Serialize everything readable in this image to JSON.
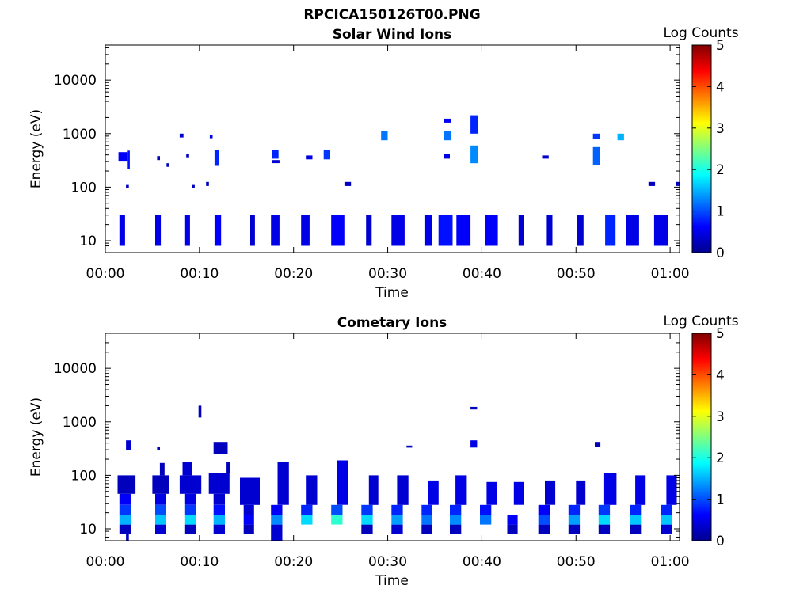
{
  "figure": {
    "title": "RPCICA150126T00.PNG"
  },
  "chart_data": [
    {
      "type": "heatmap",
      "title": "Solar Wind Ions",
      "xlabel": "Time",
      "ylabel": "Energy (eV)",
      "x_range_minutes": [
        0,
        61
      ],
      "x_ticks": [
        "00:00",
        "00:10",
        "00:20",
        "00:30",
        "00:40",
        "00:50",
        "01:00"
      ],
      "x_tick_minutes": [
        0,
        10,
        20,
        30,
        40,
        50,
        60
      ],
      "y_scale": "log",
      "y_range": [
        6,
        45000
      ],
      "y_ticks": [
        "10",
        "100",
        "1000",
        "10000"
      ],
      "y_tick_values": [
        10,
        100,
        1000,
        10000
      ],
      "colorbar": {
        "label": "Log Counts",
        "range": [
          0,
          5
        ],
        "ticks": [
          "0",
          "1",
          "2",
          "3",
          "4",
          "5"
        ],
        "colormap": "jet"
      },
      "cells": [
        [
          1.5,
          2.1,
          8.0,
          30.0,
          0.5
        ],
        [
          5.3,
          5.9,
          8.0,
          30.0,
          0.5
        ],
        [
          8.4,
          9.0,
          8.0,
          30.0,
          0.5
        ],
        [
          11.6,
          12.3,
          8.0,
          30.0,
          0.6
        ],
        [
          15.4,
          15.9,
          8.0,
          30.0,
          0.4
        ],
        [
          17.6,
          18.5,
          8.0,
          30.0,
          0.5
        ],
        [
          20.8,
          21.7,
          8.0,
          30.0,
          0.5
        ],
        [
          24.0,
          25.4,
          8.0,
          30.0,
          0.6
        ],
        [
          27.7,
          28.3,
          8.0,
          30.0,
          0.4
        ],
        [
          30.4,
          31.8,
          8.0,
          30.0,
          0.5
        ],
        [
          33.9,
          34.7,
          8.0,
          30.0,
          0.5
        ],
        [
          35.4,
          36.9,
          8.0,
          30.0,
          0.7
        ],
        [
          37.3,
          38.8,
          8.0,
          30.0,
          0.6
        ],
        [
          40.3,
          41.7,
          8.0,
          30.0,
          0.6
        ],
        [
          43.9,
          44.5,
          8.0,
          30.0,
          0.4
        ],
        [
          46.9,
          47.5,
          8.0,
          30.0,
          0.4
        ],
        [
          50.1,
          50.8,
          8.0,
          30.0,
          0.4
        ],
        [
          53.1,
          54.2,
          8.0,
          30.0,
          0.8
        ],
        [
          55.3,
          56.7,
          8.0,
          30.0,
          0.5
        ],
        [
          58.3,
          59.8,
          8.0,
          30.0,
          0.5
        ],
        [
          1.4,
          2.3,
          300,
          450,
          0.6
        ],
        [
          2.3,
          2.6,
          220,
          480,
          0.7
        ],
        [
          2.2,
          2.5,
          95,
          110,
          0.3
        ],
        [
          5.5,
          5.8,
          320,
          380,
          0.3
        ],
        [
          6.5,
          6.8,
          240,
          280,
          0.3
        ],
        [
          7.9,
          8.3,
          850,
          1000,
          0.4
        ],
        [
          8.6,
          8.9,
          360,
          420,
          0.3
        ],
        [
          9.2,
          9.5,
          95,
          110,
          0.3
        ],
        [
          10.7,
          11.0,
          105,
          125,
          0.3
        ],
        [
          11.1,
          11.4,
          820,
          950,
          0.5
        ],
        [
          11.6,
          12.1,
          250,
          500,
          0.8
        ],
        [
          17.7,
          18.4,
          340,
          500,
          0.8
        ],
        [
          17.7,
          18.5,
          280,
          320,
          0.4
        ],
        [
          21.3,
          22.0,
          330,
          390,
          0.5
        ],
        [
          23.2,
          23.9,
          330,
          500,
          0.9
        ],
        [
          25.4,
          26.1,
          105,
          125,
          0.3
        ],
        [
          29.3,
          30.0,
          750,
          1100,
          1.2
        ],
        [
          36.0,
          36.7,
          750,
          1100,
          1.2
        ],
        [
          36.0,
          36.7,
          1600,
          1900,
          0.6
        ],
        [
          36.0,
          36.6,
          340,
          420,
          0.5
        ],
        [
          38.8,
          39.6,
          1000,
          2200,
          0.8
        ],
        [
          38.8,
          39.6,
          280,
          600,
          1.3
        ],
        [
          46.4,
          47.1,
          340,
          390,
          0.4
        ],
        [
          51.8,
          52.5,
          260,
          560,
          1.1
        ],
        [
          51.8,
          52.5,
          800,
          1000,
          0.9
        ],
        [
          54.4,
          55.1,
          750,
          1000,
          1.5
        ],
        [
          57.7,
          58.4,
          105,
          125,
          0.3
        ],
        [
          60.6,
          61.0,
          105,
          125,
          0.3
        ]
      ]
    },
    {
      "type": "heatmap",
      "title": "Cometary Ions",
      "xlabel": "Time",
      "ylabel": "Energy (eV)",
      "x_range_minutes": [
        0,
        61
      ],
      "x_ticks": [
        "00:00",
        "00:10",
        "00:20",
        "00:30",
        "00:40",
        "00:50",
        "01:00"
      ],
      "x_tick_minutes": [
        0,
        10,
        20,
        30,
        40,
        50,
        60
      ],
      "y_scale": "log",
      "y_range": [
        6,
        45000
      ],
      "y_ticks": [
        "10",
        "100",
        "1000",
        "10000"
      ],
      "y_tick_values": [
        10,
        100,
        1000,
        10000
      ],
      "colorbar": {
        "label": "Log Counts",
        "range": [
          0,
          5
        ],
        "ticks": [
          "0",
          "1",
          "2",
          "3",
          "4",
          "5"
        ],
        "colormap": "jet"
      },
      "cells": [
        [
          1.5,
          2.7,
          8,
          12,
          0.3
        ],
        [
          1.5,
          2.7,
          12,
          18,
          1.5
        ],
        [
          1.5,
          2.7,
          18,
          28,
          0.9
        ],
        [
          1.5,
          2.7,
          28,
          45,
          0.6
        ],
        [
          1.3,
          3.2,
          45,
          100,
          0.3
        ],
        [
          2.2,
          2.5,
          6,
          8,
          0.3
        ],
        [
          2.2,
          2.7,
          300,
          450,
          0.4
        ],
        [
          5.3,
          6.4,
          8,
          12,
          0.4
        ],
        [
          5.3,
          6.4,
          12,
          18,
          1.6
        ],
        [
          5.3,
          6.4,
          18,
          28,
          1.0
        ],
        [
          5.3,
          6.4,
          28,
          45,
          0.5
        ],
        [
          5.0,
          6.8,
          45,
          100,
          0.3
        ],
        [
          5.8,
          6.3,
          100,
          170,
          0.3
        ],
        [
          5.5,
          5.8,
          300,
          340,
          0.3
        ],
        [
          8.4,
          9.6,
          8,
          12,
          0.3
        ],
        [
          8.4,
          9.6,
          12,
          18,
          1.7
        ],
        [
          8.4,
          9.6,
          18,
          28,
          0.9
        ],
        [
          8.4,
          9.6,
          28,
          45,
          0.5
        ],
        [
          7.9,
          10.2,
          45,
          100,
          0.4
        ],
        [
          8.2,
          9.2,
          100,
          180,
          0.4
        ],
        [
          9.9,
          10.2,
          1200,
          2000,
          0.3
        ],
        [
          11.5,
          12.7,
          8,
          12,
          0.4
        ],
        [
          11.5,
          12.7,
          12,
          18,
          1.5
        ],
        [
          11.5,
          12.7,
          18,
          28,
          0.7
        ],
        [
          11.5,
          12.7,
          28,
          45,
          0.4
        ],
        [
          11.0,
          13.2,
          45,
          110,
          0.4
        ],
        [
          11.5,
          13.0,
          250,
          420,
          0.3
        ],
        [
          12.8,
          13.3,
          110,
          180,
          0.3
        ],
        [
          14.7,
          15.8,
          8,
          12,
          0.3
        ],
        [
          14.7,
          15.8,
          12,
          18,
          0.6
        ],
        [
          14.7,
          15.8,
          18,
          28,
          0.4
        ],
        [
          14.3,
          16.4,
          28,
          90,
          0.4
        ],
        [
          17.6,
          18.8,
          6,
          12,
          0.4
        ],
        [
          17.6,
          18.8,
          12,
          18,
          1.3
        ],
        [
          17.6,
          18.8,
          18,
          28,
          0.6
        ],
        [
          18.3,
          19.5,
          28,
          180,
          0.4
        ],
        [
          20.8,
          22.0,
          12,
          18,
          1.7
        ],
        [
          20.8,
          22.0,
          18,
          28,
          0.8
        ],
        [
          21.3,
          22.5,
          28,
          100,
          0.4
        ],
        [
          24.0,
          25.2,
          12,
          18,
          2.1
        ],
        [
          24.0,
          25.2,
          18,
          28,
          1.0
        ],
        [
          24.6,
          25.8,
          28,
          190,
          0.5
        ],
        [
          27.2,
          28.4,
          8,
          12,
          0.3
        ],
        [
          27.2,
          28.4,
          12,
          18,
          1.7
        ],
        [
          27.2,
          28.4,
          18,
          28,
          0.9
        ],
        [
          28.0,
          29.0,
          28,
          100,
          0.4
        ],
        [
          30.4,
          31.6,
          8,
          12,
          0.4
        ],
        [
          30.4,
          31.6,
          12,
          18,
          1.4
        ],
        [
          30.4,
          31.6,
          18,
          28,
          0.8
        ],
        [
          31.0,
          32.2,
          28,
          100,
          0.4
        ],
        [
          32.0,
          32.6,
          330,
          360,
          0.3
        ],
        [
          33.6,
          34.7,
          8,
          12,
          0.3
        ],
        [
          33.6,
          34.7,
          12,
          18,
          1.2
        ],
        [
          33.6,
          34.7,
          18,
          28,
          0.8
        ],
        [
          34.3,
          35.4,
          28,
          80,
          0.5
        ],
        [
          36.6,
          37.8,
          8,
          12,
          0.3
        ],
        [
          36.6,
          37.8,
          12,
          18,
          1.3
        ],
        [
          36.6,
          37.8,
          18,
          28,
          0.8
        ],
        [
          37.2,
          38.4,
          28,
          100,
          0.5
        ],
        [
          38.8,
          39.5,
          1700,
          1900,
          0.3
        ],
        [
          38.8,
          39.5,
          330,
          450,
          0.5
        ],
        [
          39.8,
          41.0,
          12,
          18,
          1.2
        ],
        [
          39.8,
          41.0,
          18,
          28,
          0.7
        ],
        [
          40.5,
          41.6,
          28,
          75,
          0.5
        ],
        [
          42.7,
          43.8,
          8,
          12,
          0.3
        ],
        [
          42.7,
          43.8,
          12,
          18,
          0.6
        ],
        [
          43.4,
          44.5,
          28,
          75,
          0.5
        ],
        [
          46.0,
          47.2,
          8,
          12,
          0.3
        ],
        [
          46.0,
          47.2,
          12,
          18,
          1.0
        ],
        [
          46.0,
          47.2,
          18,
          28,
          0.6
        ],
        [
          46.7,
          47.8,
          28,
          80,
          0.4
        ],
        [
          49.2,
          50.4,
          8,
          12,
          0.3
        ],
        [
          49.2,
          50.4,
          12,
          18,
          1.4
        ],
        [
          49.2,
          50.4,
          18,
          28,
          0.8
        ],
        [
          50.0,
          51.0,
          28,
          80,
          0.4
        ],
        [
          52.0,
          52.6,
          340,
          420,
          0.3
        ],
        [
          52.4,
          53.6,
          8,
          12,
          0.3
        ],
        [
          52.4,
          53.6,
          12,
          18,
          1.7
        ],
        [
          52.4,
          53.6,
          18,
          28,
          0.9
        ],
        [
          53.0,
          54.3,
          28,
          110,
          0.5
        ],
        [
          55.7,
          56.9,
          8,
          12,
          0.3
        ],
        [
          55.7,
          56.9,
          12,
          18,
          1.6
        ],
        [
          55.7,
          56.9,
          18,
          28,
          0.8
        ],
        [
          56.3,
          57.4,
          28,
          100,
          0.5
        ],
        [
          59.0,
          60.2,
          8,
          12,
          0.4
        ],
        [
          59.0,
          60.2,
          12,
          18,
          1.6
        ],
        [
          59.0,
          60.2,
          18,
          28,
          0.8
        ],
        [
          59.6,
          60.7,
          28,
          100,
          0.5
        ]
      ]
    }
  ]
}
